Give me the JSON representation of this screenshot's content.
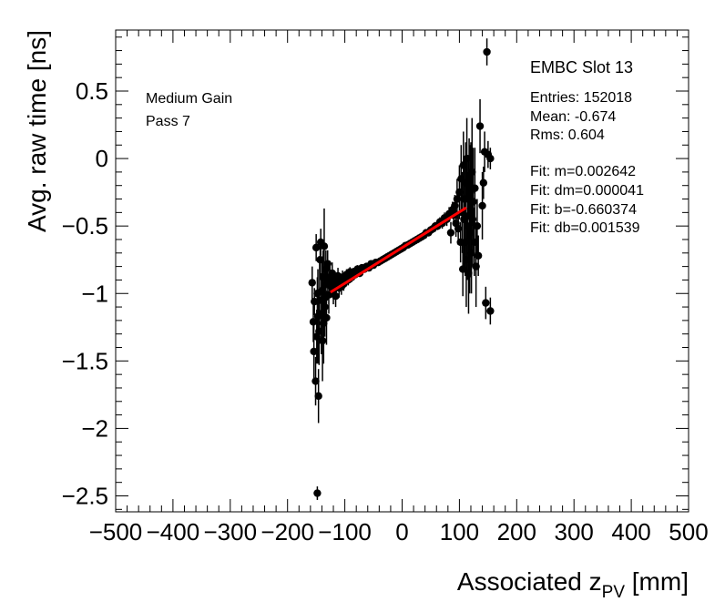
{
  "chart_data": {
    "type": "scatter",
    "xlabel_prefix": "Associated z",
    "xlabel_sub": "PV",
    "xlabel_suffix": " [mm]",
    "ylabel": "Avg. raw time [ns]",
    "xlim": [
      -500,
      500
    ],
    "ylim": [
      -2.6,
      0.95
    ],
    "x_ticks": [
      -500,
      -400,
      -300,
      -200,
      -100,
      0,
      100,
      200,
      300,
      400,
      500
    ],
    "x_tick_labels": [
      "−500",
      "−400",
      "−300",
      "−200",
      "−100",
      "0",
      "100",
      "200",
      "300",
      "400",
      "500"
    ],
    "y_ticks": [
      -2.5,
      -2,
      -1.5,
      -1,
      -0.5,
      0,
      0.5
    ],
    "y_tick_labels": [
      "−2.5",
      "−2",
      "−1.5",
      "−1",
      "−0.5",
      "0",
      "0.5"
    ],
    "legend_left": [
      "Medium Gain",
      "Pass 7"
    ],
    "stats_title": "EMBC Slot 13",
    "stats": [
      "Entries: 152018",
      "Mean: -0.674",
      "Rms: 0.604"
    ],
    "fit_text": [
      "Fit: m=0.002642",
      "Fit: dm=0.000041",
      "Fit: b=-0.660374",
      "Fit: db=0.001539"
    ],
    "fit": {
      "m": 0.002642,
      "b": -0.660374,
      "x_range": [
        -125,
        112
      ],
      "color": "#ff0000"
    },
    "series": [
      {
        "name": "data",
        "points": [
          [
            -157,
            -0.92,
            0.12
          ],
          [
            -155,
            -1.21,
            0.15
          ],
          [
            -154,
            -1.43,
            0.2
          ],
          [
            -153,
            -1.06,
            0.1
          ],
          [
            -151,
            -1.65,
            0.18
          ],
          [
            -150,
            -0.66,
            0.1
          ],
          [
            -149,
            -1.32,
            0.2
          ],
          [
            -148,
            -1.0,
            0.12
          ],
          [
            -147,
            -1.17,
            0.35
          ],
          [
            -146,
            -1.76,
            0.2
          ],
          [
            -145,
            -1.28,
            0.25
          ],
          [
            -144,
            -1.05,
            0.3
          ],
          [
            -143,
            -0.75,
            0.12
          ],
          [
            -142,
            -0.62,
            0.1
          ],
          [
            -141,
            -1.15,
            0.3
          ],
          [
            -140,
            -0.98,
            0.25
          ],
          [
            -139,
            -1.35,
            0.3
          ],
          [
            -138,
            -0.88,
            0.2
          ],
          [
            -137,
            -1.22,
            0.3
          ],
          [
            -136,
            -0.65,
            0.28
          ],
          [
            -135,
            -1.1,
            0.22
          ],
          [
            -134,
            -1.03,
            0.2
          ],
          [
            -133,
            -0.82,
            0.14
          ],
          [
            -132,
            -1.18,
            0.2
          ],
          [
            -131,
            -0.92,
            0.12
          ],
          [
            -130,
            -0.78,
            0.1
          ],
          [
            -128,
            -1.01,
            0.14
          ],
          [
            -126,
            -0.88,
            0.1
          ],
          [
            -124,
            -0.95,
            0.08
          ],
          [
            -122,
            -0.85,
            0.08
          ],
          [
            -120,
            -0.98,
            0.1
          ],
          [
            -118,
            -0.9,
            0.07
          ],
          [
            -116,
            -1.02,
            0.08
          ],
          [
            -114,
            -0.92,
            0.06
          ],
          [
            -112,
            -0.87,
            0.06
          ],
          [
            -110,
            -0.96,
            0.07
          ],
          [
            -108,
            -0.9,
            0.05
          ],
          [
            -106,
            -0.95,
            0.06
          ],
          [
            -104,
            -0.88,
            0.05
          ],
          [
            -102,
            -0.93,
            0.05
          ],
          [
            -100,
            -0.9,
            0.04
          ],
          [
            -97,
            -0.86,
            0.04
          ],
          [
            -94,
            -0.9,
            0.04
          ],
          [
            -91,
            -0.84,
            0.035
          ],
          [
            -88,
            -0.88,
            0.035
          ],
          [
            -85,
            -0.84,
            0.03
          ],
          [
            -82,
            -0.86,
            0.03
          ],
          [
            -78,
            -0.82,
            0.03
          ],
          [
            -74,
            -0.85,
            0.028
          ],
          [
            -70,
            -0.81,
            0.025
          ],
          [
            -66,
            -0.82,
            0.025
          ],
          [
            -62,
            -0.8,
            0.02
          ],
          [
            -58,
            -0.81,
            0.02
          ],
          [
            -54,
            -0.78,
            0.02
          ],
          [
            -50,
            -0.79,
            0.02
          ],
          [
            -46,
            -0.77,
            0.02
          ],
          [
            -42,
            -0.77,
            0.018
          ],
          [
            -38,
            -0.76,
            0.018
          ],
          [
            -34,
            -0.75,
            0.018
          ],
          [
            -30,
            -0.74,
            0.018
          ],
          [
            -26,
            -0.73,
            0.018
          ],
          [
            -22,
            -0.72,
            0.018
          ],
          [
            -18,
            -0.71,
            0.018
          ],
          [
            -14,
            -0.7,
            0.018
          ],
          [
            -10,
            -0.69,
            0.018
          ],
          [
            -6,
            -0.68,
            0.018
          ],
          [
            -2,
            -0.67,
            0.018
          ],
          [
            2,
            -0.66,
            0.018
          ],
          [
            6,
            -0.645,
            0.018
          ],
          [
            10,
            -0.64,
            0.018
          ],
          [
            14,
            -0.63,
            0.018
          ],
          [
            18,
            -0.62,
            0.018
          ],
          [
            22,
            -0.61,
            0.02
          ],
          [
            26,
            -0.6,
            0.02
          ],
          [
            30,
            -0.59,
            0.02
          ],
          [
            34,
            -0.58,
            0.02
          ],
          [
            38,
            -0.57,
            0.022
          ],
          [
            42,
            -0.55,
            0.022
          ],
          [
            46,
            -0.55,
            0.025
          ],
          [
            50,
            -0.53,
            0.025
          ],
          [
            54,
            -0.52,
            0.028
          ],
          [
            58,
            -0.5,
            0.03
          ],
          [
            62,
            -0.5,
            0.03
          ],
          [
            66,
            -0.47,
            0.035
          ],
          [
            70,
            -0.48,
            0.04
          ],
          [
            74,
            -0.44,
            0.04
          ],
          [
            78,
            -0.45,
            0.05
          ],
          [
            82,
            -0.41,
            0.05
          ],
          [
            85,
            -0.55,
            0.08
          ],
          [
            88,
            -0.38,
            0.06
          ],
          [
            90,
            -0.42,
            0.07
          ],
          [
            92,
            -0.35,
            0.08
          ],
          [
            94,
            -0.48,
            0.1
          ],
          [
            96,
            -0.3,
            0.15
          ],
          [
            98,
            -0.52,
            0.12
          ],
          [
            100,
            -0.25,
            0.2
          ],
          [
            102,
            -0.62,
            0.15
          ],
          [
            103,
            -0.15,
            0.25
          ],
          [
            105,
            -0.4,
            0.3
          ],
          [
            106,
            -0.82,
            0.2
          ],
          [
            107,
            -0.05,
            0.25
          ],
          [
            108,
            -0.45,
            0.35
          ],
          [
            109,
            -0.3,
            0.3
          ],
          [
            110,
            -0.62,
            0.25
          ],
          [
            111,
            -0.18,
            0.3
          ],
          [
            112,
            -0.75,
            0.35
          ],
          [
            113,
            0.0,
            0.3
          ],
          [
            114,
            -0.5,
            0.4
          ],
          [
            115,
            -0.3,
            0.3
          ],
          [
            116,
            -0.85,
            0.3
          ],
          [
            117,
            -0.15,
            0.3
          ],
          [
            118,
            -0.55,
            0.45
          ],
          [
            119,
            -0.25,
            0.35
          ],
          [
            120,
            -0.38,
            0.5
          ],
          [
            121,
            -0.7,
            0.3
          ],
          [
            122,
            -0.1,
            0.4
          ],
          [
            123,
            -0.45,
            0.35
          ],
          [
            124,
            -0.32,
            0.4
          ],
          [
            126,
            -0.62,
            0.25
          ],
          [
            127,
            -0.22,
            0.3
          ],
          [
            129,
            -0.8,
            0.3
          ],
          [
            131,
            -0.5,
            0.2
          ],
          [
            133,
            -0.72,
            0.15
          ],
          [
            136,
            0.24,
            0.2
          ],
          [
            140,
            -0.35,
            0.25
          ],
          [
            142,
            -0.18,
            0.12
          ],
          [
            144,
            0.05,
            0.15
          ],
          [
            146,
            -1.07,
            0.12
          ],
          [
            148,
            0.79,
            0.1
          ],
          [
            150,
            0.03,
            0.1
          ],
          [
            154,
            -1.13,
            0.1
          ],
          [
            154,
            0.0,
            0.08
          ],
          [
            -148,
            -2.48,
            0.05
          ]
        ]
      }
    ]
  }
}
